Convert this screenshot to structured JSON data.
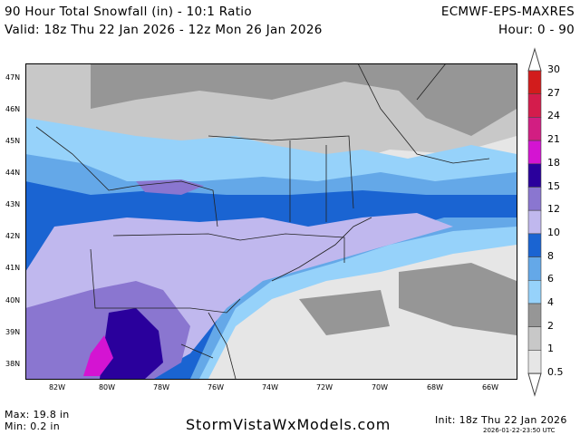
{
  "header": {
    "title": "90 Hour Total Snowfall (in) - 10:1 Ratio",
    "model": "ECMWF-EPS-MAXRES",
    "valid": "Valid: 18z Thu 22 Jan 2026 - 12z Mon 26 Jan 2026",
    "hour": "Hour: 0 - 90"
  },
  "lat_labels": [
    "47N",
    "46N",
    "45N",
    "44N",
    "43N",
    "42N",
    "41N",
    "40N",
    "39N",
    "38N"
  ],
  "lon_labels": [
    "82W",
    "80W",
    "78W",
    "76W",
    "74W",
    "72W",
    "70W",
    "68W",
    "66W"
  ],
  "colorbar": {
    "labels": [
      "30",
      "27",
      "24",
      "21",
      "18",
      "15",
      "12",
      "10",
      "8",
      "6",
      "4",
      "2",
      "1",
      "0.5"
    ],
    "colors": [
      "#d21c1c",
      "#d41c4c",
      "#d21e82",
      "#d414d2",
      "#2a009c",
      "#8a76d0",
      "#c0b8ee",
      "#1a64d2",
      "#64a8e8",
      "#96d2fa",
      "#969696",
      "#c8c8c8",
      "#e6e6e6"
    ]
  },
  "footer": {
    "max": "Max: 19.8 in",
    "min": "Min: 0.2 in",
    "site": "StormVistaWxModels.com",
    "init": "Init: 18z Thu 22 Jan 2026",
    "stamp": "2026-01-22-23:50 UTC"
  }
}
